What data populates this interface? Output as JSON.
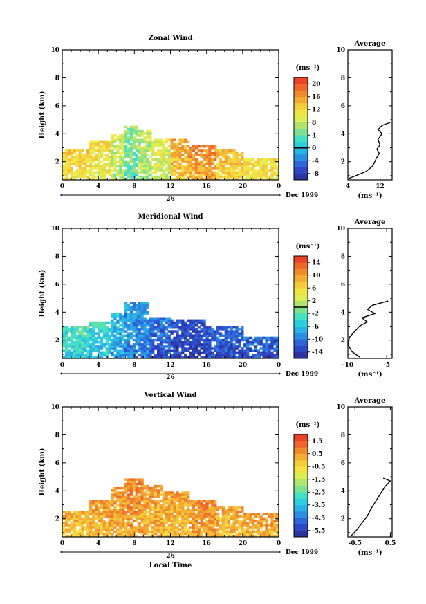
{
  "chart_data": [
    {
      "type": "heatmap",
      "title": "Zonal Wind",
      "ylabel": "Height (km)",
      "xlim": [
        0,
        24
      ],
      "ylim": [
        0.7,
        10
      ],
      "x_ticks": [
        "0",
        "4",
        "8",
        "12",
        "16",
        "20",
        "0"
      ],
      "y_ticks": [
        "2",
        "4",
        "6",
        "8",
        "10"
      ],
      "date_day": "26",
      "date_label": "Dec 1999",
      "colorbar": {
        "unit": "(ms⁻¹)",
        "ticks": [
          "-8",
          "-4",
          "0",
          "4",
          "8",
          "12",
          "16",
          "20"
        ],
        "range": [
          -10,
          22
        ],
        "mark": 0
      },
      "field": [
        {
          "x_start": 0,
          "x_end": 3,
          "top": 2.9,
          "value": 12
        },
        {
          "x_start": 3,
          "x_end": 5.5,
          "top": 3.5,
          "value": 11
        },
        {
          "x_start": 5.5,
          "x_end": 7,
          "top": 4.0,
          "value": 8
        },
        {
          "x_start": 7,
          "x_end": 8.5,
          "top": 4.6,
          "value": 5
        },
        {
          "x_start": 8.5,
          "x_end": 10,
          "top": 4.2,
          "value": 7
        },
        {
          "x_start": 10,
          "x_end": 12,
          "top": 3.7,
          "value": 9
        },
        {
          "x_start": 12,
          "x_end": 14,
          "top": 3.6,
          "value": 14
        },
        {
          "x_start": 14,
          "x_end": 17,
          "top": 3.2,
          "value": 16
        },
        {
          "x_start": 17,
          "x_end": 20,
          "top": 2.8,
          "value": 13
        },
        {
          "x_start": 20,
          "x_end": 24,
          "top": 2.3,
          "value": 11
        }
      ],
      "profile": {
        "title": "Average",
        "xlabel": "(ms⁻¹)",
        "xlim": [
          4,
          15
        ],
        "x_ticks": [
          "4",
          "12"
        ],
        "y_ticks": [
          "2",
          "4",
          "6",
          "8",
          "10"
        ],
        "x": [
          4.2,
          6.0,
          8.5,
          10.2,
          11.0,
          11.8,
          11.2,
          12.0,
          11.5,
          12.5,
          11.5,
          12.5,
          14.5
        ],
        "y": [
          0.8,
          1.0,
          1.3,
          1.7,
          2.2,
          2.6,
          2.9,
          3.2,
          3.6,
          4.0,
          4.3,
          4.6,
          4.8
        ]
      }
    },
    {
      "type": "heatmap",
      "title": "Meridional Wind",
      "ylabel": "Height (km)",
      "xlim": [
        0,
        24
      ],
      "ylim": [
        0.7,
        10
      ],
      "x_ticks": [
        "0",
        "4",
        "8",
        "12",
        "16",
        "20",
        "0"
      ],
      "y_ticks": [
        "2",
        "4",
        "6",
        "8",
        "10"
      ],
      "date_day": "26",
      "date_label": "Dec 1999",
      "colorbar": {
        "unit": "(ms⁻¹)",
        "ticks": [
          "-14",
          "-10",
          "-6",
          "-2",
          "2",
          "6",
          "10",
          "14"
        ],
        "range": [
          -16,
          16
        ],
        "mark": 0
      },
      "field": [
        {
          "x_start": 0,
          "x_end": 3,
          "top": 3.0,
          "value": -4
        },
        {
          "x_start": 3,
          "x_end": 5.5,
          "top": 3.3,
          "value": -5
        },
        {
          "x_start": 5.5,
          "x_end": 7,
          "top": 3.9,
          "value": -7
        },
        {
          "x_start": 7,
          "x_end": 9.5,
          "top": 4.7,
          "value": -9
        },
        {
          "x_start": 9.5,
          "x_end": 12,
          "top": 3.6,
          "value": -11
        },
        {
          "x_start": 12,
          "x_end": 16,
          "top": 3.5,
          "value": -13
        },
        {
          "x_start": 16,
          "x_end": 20,
          "top": 3.0,
          "value": -12
        },
        {
          "x_start": 20,
          "x_end": 24,
          "top": 2.3,
          "value": -12
        }
      ],
      "profile": {
        "title": "Average",
        "xlabel": "(ms⁻¹)",
        "xlim": [
          -10,
          -4.3
        ],
        "x_ticks": [
          "-10",
          "-5"
        ],
        "y_ticks": [
          "2",
          "4",
          "6",
          "8",
          "10"
        ],
        "x": [
          -8.5,
          -9.5,
          -10.0,
          -9.8,
          -9.0,
          -8.5,
          -7.5,
          -8.2,
          -6.5,
          -7.5,
          -6.8,
          -4.8
        ],
        "y": [
          0.8,
          1.2,
          1.7,
          2.2,
          2.7,
          3.0,
          3.3,
          3.6,
          3.9,
          4.2,
          4.5,
          4.8
        ]
      }
    },
    {
      "type": "heatmap",
      "title": "Vertical Wind",
      "ylabel": "Height (km)",
      "xlabel": "Local Time",
      "xlim": [
        0,
        24
      ],
      "ylim": [
        0.7,
        10
      ],
      "x_ticks": [
        "0",
        "4",
        "8",
        "12",
        "16",
        "20",
        "0"
      ],
      "y_ticks": [
        "2",
        "4",
        "6",
        "8",
        "10"
      ],
      "date_day": "26",
      "date_label": "Dec 1999",
      "colorbar": {
        "unit": "(ms⁻¹)",
        "ticks": [
          "-5.5",
          "-4.5",
          "-3.5",
          "-2.5",
          "-1.5",
          "-0.5",
          "0.5",
          "1.5"
        ],
        "range": [
          -6,
          2
        ],
        "mark": null
      },
      "field": [
        {
          "x_start": 0,
          "x_end": 3,
          "top": 2.5,
          "value": 0.0
        },
        {
          "x_start": 3,
          "x_end": 5.5,
          "top": 3.3,
          "value": 0.2
        },
        {
          "x_start": 5.5,
          "x_end": 7,
          "top": 4.2,
          "value": 0.4
        },
        {
          "x_start": 7,
          "x_end": 9,
          "top": 4.9,
          "value": 0.6
        },
        {
          "x_start": 9,
          "x_end": 11,
          "top": 4.4,
          "value": 0.3
        },
        {
          "x_start": 11,
          "x_end": 14,
          "top": 3.9,
          "value": 0.1
        },
        {
          "x_start": 14,
          "x_end": 17,
          "top": 3.4,
          "value": 0.5
        },
        {
          "x_start": 17,
          "x_end": 20,
          "top": 2.9,
          "value": 0.1
        },
        {
          "x_start": 20,
          "x_end": 24,
          "top": 2.4,
          "value": 0.3
        }
      ],
      "profile": {
        "title": "Average",
        "xlabel": "(ms⁻¹)",
        "xlim": [
          -0.7,
          0.55
        ],
        "x_ticks": [
          "-0.5",
          "0.5"
        ],
        "y_ticks": [
          "2",
          "4",
          "6",
          "8",
          "10"
        ],
        "x": [
          -0.6,
          -0.45,
          -0.3,
          -0.15,
          -0.05,
          0.05,
          0.15,
          0.25,
          0.35,
          0.5,
          0.3
        ],
        "y": [
          0.8,
          1.2,
          1.7,
          2.2,
          2.7,
          3.1,
          3.5,
          3.9,
          4.3,
          4.7,
          4.9
        ]
      }
    }
  ]
}
